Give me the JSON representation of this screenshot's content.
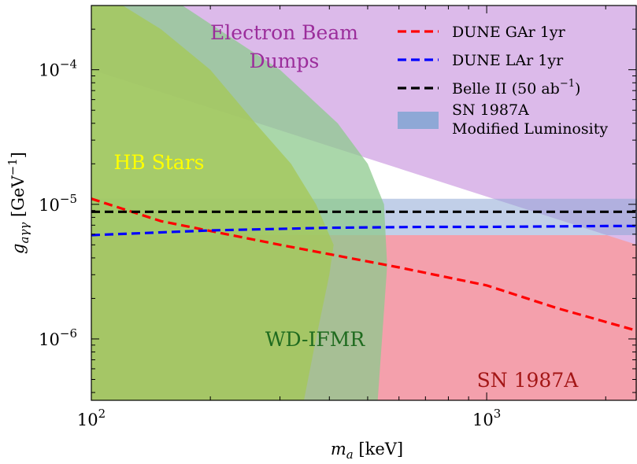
{
  "chart_data": {
    "type": "area",
    "x_scale": "log",
    "y_scale": "log",
    "xlim": [
      100,
      2400
    ],
    "ylim": [
      3.5e-07,
      0.0003
    ],
    "xlabel": "m_a [keV]",
    "ylabel": "g_{aγγ} [GeV^{-1}]",
    "x_ticks": [
      {
        "value": 100,
        "label": "10",
        "exp": "2"
      },
      {
        "value": 1000,
        "label": "10",
        "exp": "3"
      }
    ],
    "y_ticks": [
      {
        "value": 1e-06,
        "label": "10",
        "exp": "−6"
      },
      {
        "value": 1e-05,
        "label": "10",
        "exp": "−5"
      },
      {
        "value": 0.0001,
        "label": "10",
        "exp": "−4"
      }
    ],
    "regions": [
      {
        "name": "SN 1987A",
        "label": "SN 1987A",
        "color": "#f4a0ac",
        "label_color": "#a31616",
        "polygon": [
          [
            100,
            5.9e-06
          ],
          [
            2400,
            5.9e-06
          ],
          [
            2400,
            3.5e-07
          ],
          [
            100,
            3.5e-07
          ]
        ]
      },
      {
        "name": "Electron Beam Dumps",
        "label_lines": [
          "Electron Beam",
          "Dumps"
        ],
        "color": "#dcbaea",
        "label_color": "#9b2d9b",
        "polygon": [
          [
            130,
            0.0003
          ],
          [
            2400,
            0.0003
          ],
          [
            2400,
            5e-06
          ],
          [
            100,
            0.0001
          ],
          [
            100,
            0.0003
          ]
        ]
      },
      {
        "name": "SN 1987A Modified Luminosity",
        "color": "#8ea8d6",
        "opacity": 0.55,
        "polygon": [
          [
            100,
            1.1e-05
          ],
          [
            2400,
            1.1e-05
          ],
          [
            2400,
            5.9e-06
          ],
          [
            100,
            5.9e-06
          ]
        ]
      },
      {
        "name": "WD-IFMR",
        "label": "WD-IFMR",
        "color": "#8dc98d",
        "opacity": 0.75,
        "label_color": "#1f6b1f",
        "polygon": [
          [
            100,
            0.0003
          ],
          [
            170,
            0.0003
          ],
          [
            300,
            0.0001
          ],
          [
            420,
            4e-05
          ],
          [
            500,
            2e-05
          ],
          [
            550,
            1e-05
          ],
          [
            560,
            3.5e-06
          ],
          [
            530,
            3.5e-07
          ],
          [
            100,
            3.5e-07
          ]
        ]
      },
      {
        "name": "HB Stars",
        "label": "HB Stars",
        "color": "#a5c85a",
        "opacity": 0.8,
        "label_color": "#ffff00",
        "polygon": [
          [
            100,
            0.0003
          ],
          [
            120,
            0.0003
          ],
          [
            150,
            0.0002
          ],
          [
            200,
            0.0001
          ],
          [
            260,
            4e-05
          ],
          [
            320,
            2e-05
          ],
          [
            370,
            1e-05
          ],
          [
            410,
            5e-06
          ],
          [
            400,
            3e-06
          ],
          [
            370,
            1e-06
          ],
          [
            345,
            3.5e-07
          ],
          [
            100,
            3.5e-07
          ]
        ]
      }
    ],
    "series": [
      {
        "name": "DUNE GAr 1yr",
        "color": "#ff0000",
        "x": [
          100,
          150,
          300,
          600,
          1000,
          1500,
          2400
        ],
        "y": [
          1.1e-05,
          7.5e-06,
          5e-06,
          3.4e-06,
          2.5e-06,
          1.7e-06,
          1.15e-06
        ]
      },
      {
        "name": "DUNE LAr 1yr",
        "color": "#0000ff",
        "x": [
          100,
          200,
          400,
          700,
          1000,
          2000,
          2400
        ],
        "y": [
          5.9e-06,
          6.4e-06,
          6.7e-06,
          6.8e-06,
          6.8e-06,
          6.9e-06,
          6.9e-06
        ]
      },
      {
        "name": "Belle II (50 ab^-1)",
        "color": "#000000",
        "x": [
          100,
          2400
        ],
        "y": [
          8.8e-06,
          8.8e-06
        ]
      }
    ],
    "legend": {
      "placement": "top-right",
      "entries": [
        {
          "text": "DUNE GAr 1yr",
          "kind": "line",
          "color": "#ff0000"
        },
        {
          "text": "DUNE LAr 1yr",
          "kind": "line",
          "color": "#0000ff"
        },
        {
          "text": "Belle II (50 ab",
          "sup": "−1",
          "suffix": ")",
          "kind": "line",
          "color": "#000000"
        },
        {
          "text_lines": [
            "SN 1987A",
            "Modified Luminosity"
          ],
          "kind": "patch",
          "color": "#8ea8d6"
        }
      ]
    }
  }
}
